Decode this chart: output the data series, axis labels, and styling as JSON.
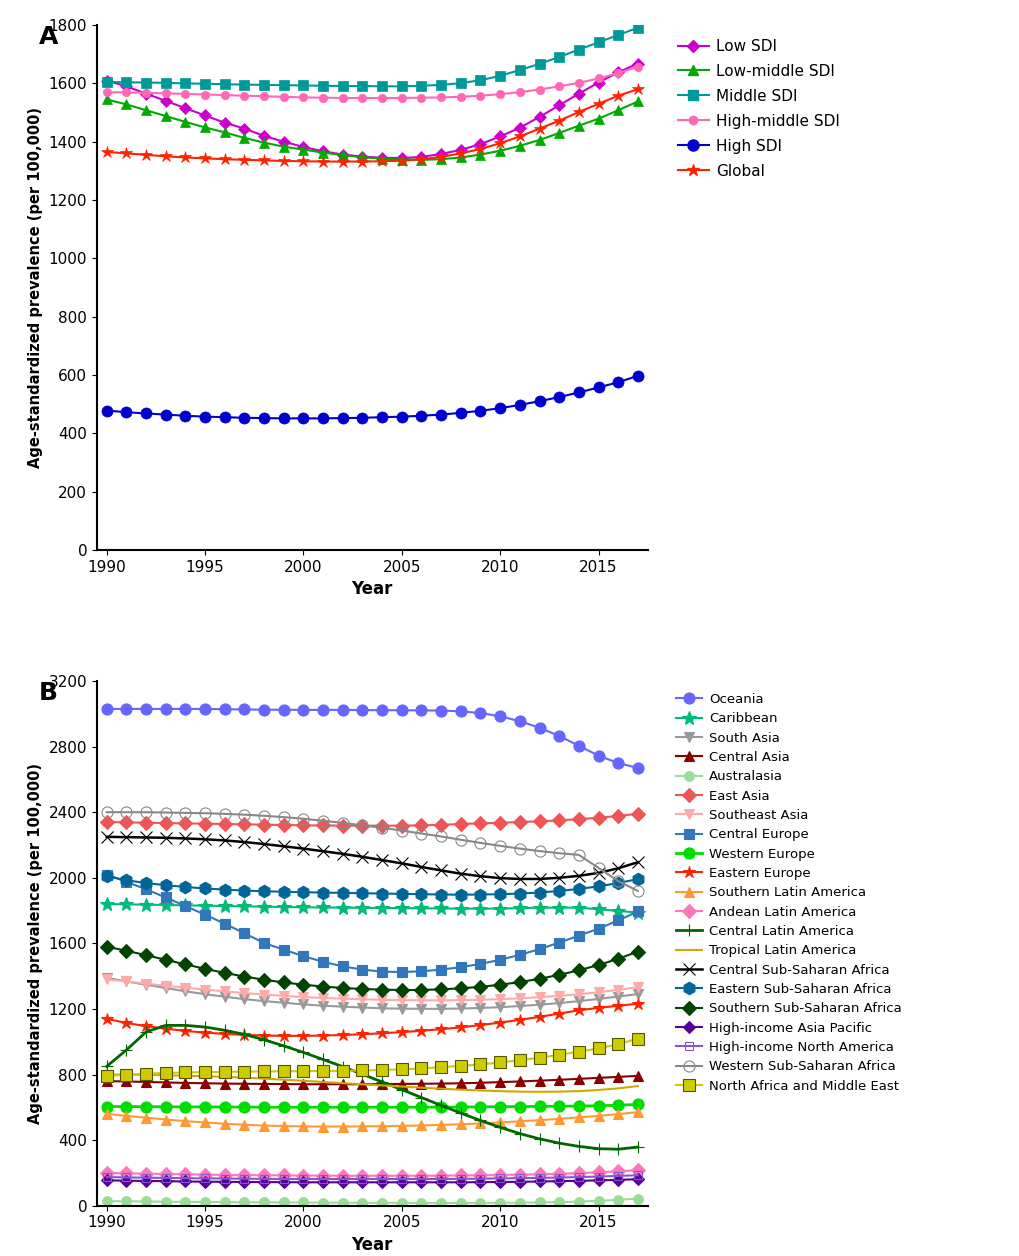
{
  "years": [
    1990,
    1991,
    1992,
    1993,
    1994,
    1995,
    1996,
    1997,
    1998,
    1999,
    2000,
    2001,
    2002,
    2003,
    2004,
    2005,
    2006,
    2007,
    2008,
    2009,
    2010,
    2011,
    2012,
    2013,
    2014,
    2015,
    2016,
    2017
  ],
  "panel_A": {
    "Low SDI": [
      1610,
      1590,
      1565,
      1540,
      1515,
      1490,
      1465,
      1445,
      1420,
      1400,
      1382,
      1367,
      1356,
      1349,
      1345,
      1344,
      1348,
      1358,
      1372,
      1392,
      1418,
      1448,
      1485,
      1525,
      1565,
      1603,
      1638,
      1668
    ],
    "Low-middle SDI": [
      1545,
      1528,
      1508,
      1488,
      1468,
      1449,
      1432,
      1413,
      1397,
      1383,
      1373,
      1363,
      1354,
      1347,
      1342,
      1339,
      1338,
      1340,
      1346,
      1356,
      1369,
      1386,
      1406,
      1430,
      1455,
      1479,
      1508,
      1538
    ],
    "Middle SDI": [
      1605,
      1604,
      1603,
      1602,
      1600,
      1599,
      1597,
      1596,
      1595,
      1594,
      1593,
      1592,
      1591,
      1591,
      1590,
      1590,
      1592,
      1595,
      1601,
      1611,
      1626,
      1646,
      1667,
      1691,
      1716,
      1741,
      1766,
      1791
    ],
    "High-middle SDI": [
      1570,
      1569,
      1568,
      1566,
      1564,
      1562,
      1560,
      1558,
      1556,
      1554,
      1552,
      1551,
      1550,
      1550,
      1550,
      1550,
      1551,
      1552,
      1554,
      1558,
      1563,
      1570,
      1579,
      1590,
      1602,
      1617,
      1635,
      1657
    ],
    "High SDI": [
      478,
      472,
      468,
      464,
      460,
      457,
      455,
      453,
      452,
      451,
      451,
      451,
      452,
      453,
      455,
      457,
      460,
      464,
      470,
      477,
      486,
      497,
      510,
      524,
      540,
      557,
      575,
      597
    ],
    "Global": [
      1365,
      1360,
      1355,
      1350,
      1346,
      1343,
      1340,
      1338,
      1336,
      1334,
      1333,
      1332,
      1332,
      1332,
      1333,
      1335,
      1340,
      1348,
      1360,
      1375,
      1395,
      1418,
      1445,
      1472,
      1502,
      1530,
      1558,
      1580
    ]
  },
  "panel_A_styles": {
    "Low SDI": {
      "color": "#CC00CC",
      "marker": "D",
      "markersize": 6,
      "mfc": "#CC00CC"
    },
    "Low-middle SDI": {
      "color": "#00AA00",
      "marker": "^",
      "markersize": 7,
      "mfc": "#00AA00"
    },
    "Middle SDI": {
      "color": "#009999",
      "marker": "s",
      "markersize": 7,
      "mfc": "#009999"
    },
    "High-middle SDI": {
      "color": "#FF69B4",
      "marker": "o",
      "markersize": 6,
      "mfc": "#FF69B4"
    },
    "High SDI": {
      "color": "#0000CC",
      "marker": "o",
      "markersize": 8,
      "mfc": "#0000CC"
    },
    "Global": {
      "color": "#FF2200",
      "marker": "*",
      "markersize": 9,
      "mfc": "#FF2200"
    }
  },
  "panel_B": {
    "Oceania": [
      3030,
      3030,
      3030,
      3030,
      3030,
      3030,
      3028,
      3027,
      3025,
      3025,
      3024,
      3024,
      3024,
      3023,
      3022,
      3022,
      3021,
      3020,
      3015,
      3005,
      2985,
      2955,
      2915,
      2865,
      2805,
      2745,
      2700,
      2670
    ],
    "Caribbean": [
      1840,
      1838,
      1836,
      1834,
      1832,
      1830,
      1828,
      1826,
      1824,
      1822,
      1820,
      1819,
      1818,
      1817,
      1816,
      1815,
      1814,
      1813,
      1812,
      1812,
      1812,
      1815,
      1818,
      1818,
      1818,
      1808,
      1798,
      1788
    ],
    "South Asia": [
      1390,
      1368,
      1348,
      1328,
      1308,
      1290,
      1275,
      1260,
      1248,
      1238,
      1228,
      1220,
      1214,
      1209,
      1204,
      1202,
      1201,
      1201,
      1203,
      1206,
      1211,
      1218,
      1226,
      1236,
      1248,
      1261,
      1276,
      1291
    ],
    "Central Asia": [
      760,
      758,
      755,
      752,
      749,
      747,
      745,
      744,
      743,
      742,
      741,
      741,
      741,
      741,
      742,
      743,
      744,
      745,
      747,
      750,
      754,
      758,
      763,
      768,
      774,
      780,
      786,
      792
    ],
    "Australasia": [
      28,
      27,
      26,
      25,
      24,
      23,
      22,
      21,
      21,
      20,
      20,
      19,
      19,
      18,
      18,
      18,
      17,
      17,
      17,
      17,
      18,
      19,
      20,
      22,
      25,
      30,
      36,
      44
    ],
    "East Asia": [
      2340,
      2338,
      2336,
      2334,
      2332,
      2330,
      2328,
      2326,
      2324,
      2322,
      2320,
      2319,
      2318,
      2318,
      2318,
      2318,
      2320,
      2323,
      2328,
      2332,
      2336,
      2340,
      2345,
      2350,
      2358,
      2366,
      2378,
      2390
    ],
    "Southeast Asia": [
      1380,
      1368,
      1355,
      1342,
      1330,
      1318,
      1307,
      1297,
      1288,
      1280,
      1273,
      1267,
      1263,
      1259,
      1256,
      1254,
      1253,
      1253,
      1254,
      1256,
      1260,
      1265,
      1272,
      1280,
      1290,
      1302,
      1317,
      1333
    ],
    "Central Europe": [
      2020,
      1975,
      1930,
      1880,
      1828,
      1775,
      1720,
      1662,
      1602,
      1562,
      1522,
      1488,
      1460,
      1440,
      1428,
      1425,
      1430,
      1440,
      1455,
      1475,
      1500,
      1530,
      1565,
      1605,
      1647,
      1690,
      1740,
      1795
    ],
    "Western Europe": [
      605,
      605,
      604,
      604,
      603,
      603,
      602,
      602,
      601,
      601,
      601,
      601,
      601,
      601,
      601,
      601,
      601,
      602,
      602,
      603,
      604,
      605,
      606,
      607,
      608,
      610,
      613,
      618
    ],
    "Eastern Europe": [
      1140,
      1115,
      1095,
      1080,
      1066,
      1056,
      1048,
      1042,
      1038,
      1036,
      1036,
      1038,
      1041,
      1046,
      1052,
      1059,
      1067,
      1077,
      1088,
      1102,
      1117,
      1134,
      1152,
      1172,
      1192,
      1207,
      1220,
      1232
    ],
    "Southern Latin America": [
      560,
      548,
      537,
      526,
      516,
      508,
      500,
      494,
      489,
      486,
      484,
      483,
      483,
      484,
      485,
      487,
      490,
      493,
      497,
      502,
      508,
      515,
      522,
      530,
      539,
      548,
      559,
      571
    ],
    "Andean Latin America": [
      200,
      198,
      196,
      194,
      192,
      190,
      188,
      187,
      186,
      185,
      184,
      184,
      183,
      183,
      183,
      183,
      183,
      184,
      185,
      186,
      188,
      190,
      192,
      195,
      199,
      204,
      210,
      217
    ],
    "Central Latin America": [
      850,
      950,
      1060,
      1100,
      1100,
      1090,
      1070,
      1045,
      1012,
      975,
      935,
      892,
      848,
      802,
      755,
      708,
      660,
      612,
      565,
      520,
      478,
      440,
      408,
      382,
      362,
      348,
      345,
      358
    ],
    "Tropical Latin America": [
      800,
      800,
      798,
      796,
      793,
      790,
      786,
      781,
      775,
      769,
      762,
      755,
      748,
      741,
      734,
      727,
      720,
      714,
      708,
      703,
      699,
      696,
      695,
      696,
      699,
      706,
      716,
      730
    ],
    "Central Sub-Saharan Africa": [
      2250,
      2248,
      2246,
      2244,
      2240,
      2235,
      2228,
      2218,
      2206,
      2192,
      2178,
      2162,
      2146,
      2128,
      2108,
      2088,
      2066,
      2045,
      2025,
      2010,
      1998,
      1993,
      1993,
      2000,
      2012,
      2030,
      2058,
      2095
    ],
    "Eastern Sub-Saharan Africa": [
      2010,
      1985,
      1968,
      1955,
      1944,
      1935,
      1928,
      1922,
      1918,
      1915,
      1912,
      1910,
      1908,
      1906,
      1904,
      1902,
      1900,
      1898,
      1897,
      1898,
      1900,
      1904,
      1910,
      1920,
      1932,
      1948,
      1968,
      1992
    ],
    "Southern Sub-Saharan Africa": [
      1580,
      1555,
      1528,
      1500,
      1472,
      1445,
      1420,
      1398,
      1378,
      1362,
      1348,
      1337,
      1328,
      1322,
      1318,
      1316,
      1316,
      1320,
      1326,
      1335,
      1348,
      1364,
      1384,
      1408,
      1436,
      1468,
      1506,
      1550
    ],
    "High-income Asia Pacific": [
      155,
      153,
      151,
      150,
      148,
      147,
      146,
      145,
      144,
      144,
      143,
      143,
      143,
      143,
      143,
      143,
      143,
      143,
      143,
      144,
      145,
      146,
      148,
      150,
      152,
      155,
      158,
      162
    ],
    "High-income North America": [
      175,
      173,
      171,
      170,
      168,
      167,
      166,
      165,
      164,
      163,
      163,
      163,
      163,
      163,
      163,
      163,
      163,
      163,
      164,
      165,
      167,
      168,
      170,
      172,
      175,
      178,
      182,
      186
    ],
    "Western Sub-Saharan Africa": [
      2400,
      2400,
      2400,
      2398,
      2396,
      2394,
      2390,
      2385,
      2378,
      2370,
      2360,
      2348,
      2335,
      2320,
      2305,
      2288,
      2270,
      2252,
      2232,
      2213,
      2195,
      2178,
      2163,
      2150,
      2140,
      2060,
      1980,
      1920
    ],
    "North Africa and Middle East": [
      790,
      800,
      806,
      810,
      813,
      815,
      817,
      818,
      819,
      820,
      821,
      822,
      823,
      825,
      828,
      832,
      838,
      845,
      853,
      862,
      874,
      888,
      903,
      920,
      940,
      960,
      985,
      1020
    ]
  },
  "panel_B_styles": {
    "Oceania": {
      "color": "#6666FF",
      "marker": "o",
      "markersize": 8,
      "mfc": "#6666FF",
      "lw": 1.5
    },
    "Caribbean": {
      "color": "#00BB77",
      "marker": "*",
      "markersize": 10,
      "mfc": "#00BB77",
      "lw": 1.5
    },
    "South Asia": {
      "color": "#999999",
      "marker": "v",
      "markersize": 7,
      "mfc": "#999999",
      "lw": 1.5
    },
    "Central Asia": {
      "color": "#880000",
      "marker": "^",
      "markersize": 7,
      "mfc": "#880000",
      "lw": 1.5
    },
    "Australasia": {
      "color": "#99DD99",
      "marker": "o",
      "markersize": 7,
      "mfc": "#99DD99",
      "lw": 1.5
    },
    "East Asia": {
      "color": "#EE5555",
      "marker": "D",
      "markersize": 7,
      "mfc": "#EE5555",
      "lw": 1.5
    },
    "Southeast Asia": {
      "color": "#FFAAAA",
      "marker": "v",
      "markersize": 7,
      "mfc": "#FFAAAA",
      "lw": 1.5
    },
    "Central Europe": {
      "color": "#3377BB",
      "marker": "s",
      "markersize": 7,
      "mfc": "#3377BB",
      "lw": 1.5
    },
    "Western Europe": {
      "color": "#00DD00",
      "marker": "o",
      "markersize": 8,
      "mfc": "#00DD00",
      "lw": 2.0
    },
    "Eastern Europe": {
      "color": "#FF2200",
      "marker": "*",
      "markersize": 9,
      "mfc": "#FF2200",
      "lw": 1.5
    },
    "Southern Latin America": {
      "color": "#FF9933",
      "marker": "^",
      "markersize": 7,
      "mfc": "#FF9933",
      "lw": 1.5
    },
    "Andean Latin America": {
      "color": "#FF77BB",
      "marker": "D",
      "markersize": 7,
      "mfc": "#FF77BB",
      "lw": 1.5
    },
    "Central Latin America": {
      "color": "#006600",
      "marker": "+",
      "markersize": 9,
      "mfc": "#006600",
      "lw": 2.0
    },
    "Tropical Latin America": {
      "color": "#CCAA00",
      "marker": "None",
      "markersize": 0,
      "mfc": "#CCAA00",
      "lw": 1.5
    },
    "Central Sub-Saharan Africa": {
      "color": "#000000",
      "marker": "x",
      "markersize": 8,
      "mfc": "#000000",
      "lw": 1.8
    },
    "Eastern Sub-Saharan Africa": {
      "color": "#006699",
      "marker": "h",
      "markersize": 9,
      "mfc": "#006699",
      "lw": 1.5
    },
    "Southern Sub-Saharan Africa": {
      "color": "#004400",
      "marker": "D",
      "markersize": 7,
      "mfc": "#004400",
      "lw": 1.5
    },
    "High-income Asia Pacific": {
      "color": "#550099",
      "marker": "D",
      "markersize": 6,
      "mfc": "#550099",
      "lw": 1.5
    },
    "High-income North America": {
      "color": "#8855CC",
      "marker": "s",
      "markersize": 6,
      "mfc": "none",
      "lw": 1.5
    },
    "Western Sub-Saharan Africa": {
      "color": "#888888",
      "marker": "o",
      "markersize": 8,
      "mfc": "none",
      "lw": 1.5
    },
    "North Africa and Middle East": {
      "color": "#CCCC00",
      "marker": "s",
      "markersize": 8,
      "mfc": "#CCCC00",
      "lw": 1.5
    }
  },
  "panel_A_ylim": [
    0,
    1800
  ],
  "panel_A_yticks": [
    0,
    200,
    400,
    600,
    800,
    1000,
    1200,
    1400,
    1600,
    1800
  ],
  "panel_B_ylim": [
    0,
    3200
  ],
  "panel_B_yticks": [
    0,
    400,
    800,
    1200,
    1600,
    2000,
    2400,
    2800,
    3200
  ],
  "xlabel": "Year",
  "ylabel": "Age-standardized prevalence (per 100,000)",
  "xticks": [
    1990,
    1995,
    2000,
    2005,
    2010,
    2015
  ]
}
